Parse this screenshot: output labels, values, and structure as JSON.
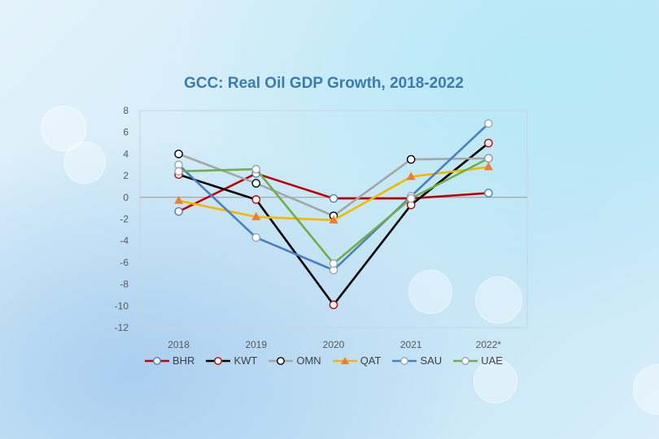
{
  "chart_data": {
    "type": "line",
    "title": "GCC: Real Oil GDP Growth, 2018-2022",
    "categories": [
      "2018",
      "2019",
      "2020",
      "2021",
      "2022*"
    ],
    "ylim": [
      -12,
      8
    ],
    "yticks": [
      "8",
      "6",
      "4",
      "2",
      "0",
      "-2",
      "-4",
      "-6",
      "-8",
      "-10",
      "-12"
    ],
    "series": [
      {
        "name": "BHR",
        "color": "#c00000",
        "marker": "circle-blue-edge",
        "values": [
          -1.3,
          2.2,
          -0.1,
          -0.1,
          0.4
        ]
      },
      {
        "name": "KWT",
        "color": "#000000",
        "marker": "circle-red-edge",
        "values": [
          2.1,
          -0.2,
          -9.9,
          -0.7,
          5.0
        ]
      },
      {
        "name": "OMN",
        "color": "#a6a6a6",
        "marker": "circle-black-edge",
        "values": [
          4.0,
          1.3,
          -1.7,
          3.5,
          3.6
        ]
      },
      {
        "name": "QAT",
        "color": "#f2b800",
        "marker": "triangle",
        "values": [
          -0.3,
          -1.8,
          -2.1,
          1.9,
          2.8
        ]
      },
      {
        "name": "SAU",
        "color": "#4a7fc1",
        "marker": "circle-gray-edge",
        "values": [
          3.0,
          -3.7,
          -6.7,
          0.1,
          6.8
        ]
      },
      {
        "name": "UAE",
        "color": "#70ad47",
        "marker": "circle-gray-edge",
        "values": [
          2.4,
          2.6,
          -6.1,
          -0.1,
          3.6
        ]
      }
    ]
  },
  "colors": {
    "title": "#3c7bb0",
    "axis": "#595959",
    "zero_line": "#9a9a9a",
    "marker_fill": "#ffffff"
  }
}
